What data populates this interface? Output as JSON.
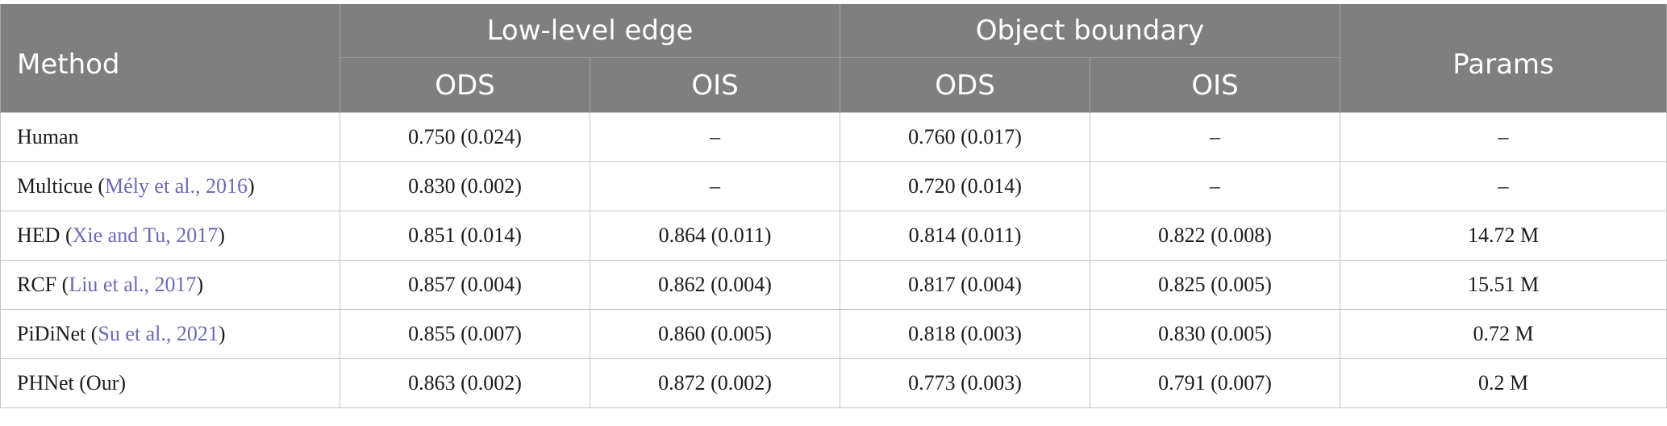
{
  "header": {
    "method": "Method",
    "low_level_edge": "Low-level edge",
    "object_boundary": "Object boundary",
    "params": "Params",
    "ods": "ODS",
    "ois": "OIS"
  },
  "rows": [
    {
      "name": "Human",
      "cite": "",
      "ll_ods": "0.750 (0.024)",
      "ll_ois": "–",
      "ob_ods": "0.760 (0.017)",
      "ob_ois": "–",
      "params": "–"
    },
    {
      "name": "Multicue",
      "cite": "Mély et al., 2016",
      "ll_ods": "0.830 (0.002)",
      "ll_ois": "–",
      "ob_ods": "0.720 (0.014)",
      "ob_ois": "–",
      "params": "–"
    },
    {
      "name": "HED",
      "cite": "Xie and Tu, 2017",
      "ll_ods": "0.851 (0.014)",
      "ll_ois": "0.864 (0.011)",
      "ob_ods": "0.814 (0.011)",
      "ob_ois": "0.822 (0.008)",
      "params": "14.72 M"
    },
    {
      "name": "RCF",
      "cite": "Liu et al., 2017",
      "ll_ods": "0.857 (0.004)",
      "ll_ois": "0.862 (0.004)",
      "ob_ods": "0.817 (0.004)",
      "ob_ois": "0.825 (0.005)",
      "params": "15.51 M"
    },
    {
      "name": "PiDiNet",
      "cite": "Su et al., 2021",
      "ll_ods": "0.855 (0.007)",
      "ll_ois": "0.860 (0.005)",
      "ob_ods": "0.818 (0.003)",
      "ob_ois": "0.830 (0.005)",
      "params": "0.72 M"
    },
    {
      "name": "PHNet (Our)",
      "cite": "",
      "ll_ods": "0.863 (0.002)",
      "ll_ois": "0.872 (0.002)",
      "ob_ods": "0.773 (0.003)",
      "ob_ois": "0.791 (0.007)",
      "params": "0.2 M"
    }
  ]
}
